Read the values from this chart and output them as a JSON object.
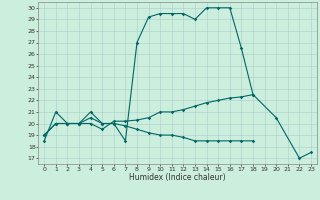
{
  "title": "",
  "xlabel": "Humidex (Indice chaleur)",
  "bg_color": "#cceedd",
  "line_color": "#006666",
  "grid_color": "#aacccc",
  "xlim": [
    -0.5,
    23.5
  ],
  "ylim": [
    16.5,
    30.5
  ],
  "yticks": [
    17,
    18,
    19,
    20,
    21,
    22,
    23,
    24,
    25,
    26,
    27,
    28,
    29,
    30
  ],
  "xticks": [
    0,
    1,
    2,
    3,
    4,
    5,
    6,
    7,
    8,
    9,
    10,
    11,
    12,
    13,
    14,
    15,
    16,
    17,
    18,
    19,
    20,
    21,
    22,
    23
  ],
  "lines": [
    {
      "x": [
        0,
        1,
        2,
        3,
        4,
        5,
        6,
        7,
        8,
        9,
        10,
        11,
        12,
        13,
        14,
        15,
        16,
        17,
        18,
        20,
        22,
        23
      ],
      "y": [
        18.5,
        21,
        20,
        20,
        21,
        20,
        20,
        18.5,
        27,
        29.2,
        29.5,
        29.5,
        29.5,
        29,
        30,
        30,
        30,
        26.5,
        22.5,
        20.5,
        17,
        17.5
      ]
    },
    {
      "x": [
        0,
        1,
        2,
        3,
        4,
        5,
        6,
        7,
        8,
        9,
        10,
        11,
        12,
        13,
        14,
        15,
        16,
        17,
        18
      ],
      "y": [
        19,
        20,
        20,
        20,
        20,
        19.5,
        20.2,
        20.2,
        20.3,
        20.5,
        21,
        21,
        21.2,
        21.5,
        21.8,
        22,
        22.2,
        22.3,
        22.5
      ]
    },
    {
      "x": [
        0,
        1,
        2,
        3,
        4,
        5,
        6,
        7,
        8,
        9,
        10,
        11,
        12,
        13,
        14,
        15,
        16,
        17,
        18
      ],
      "y": [
        19,
        20,
        20,
        20,
        20.5,
        20,
        20,
        19.8,
        19.5,
        19.2,
        19,
        19,
        18.8,
        18.5,
        18.5,
        18.5,
        18.5,
        18.5,
        18.5
      ]
    }
  ]
}
